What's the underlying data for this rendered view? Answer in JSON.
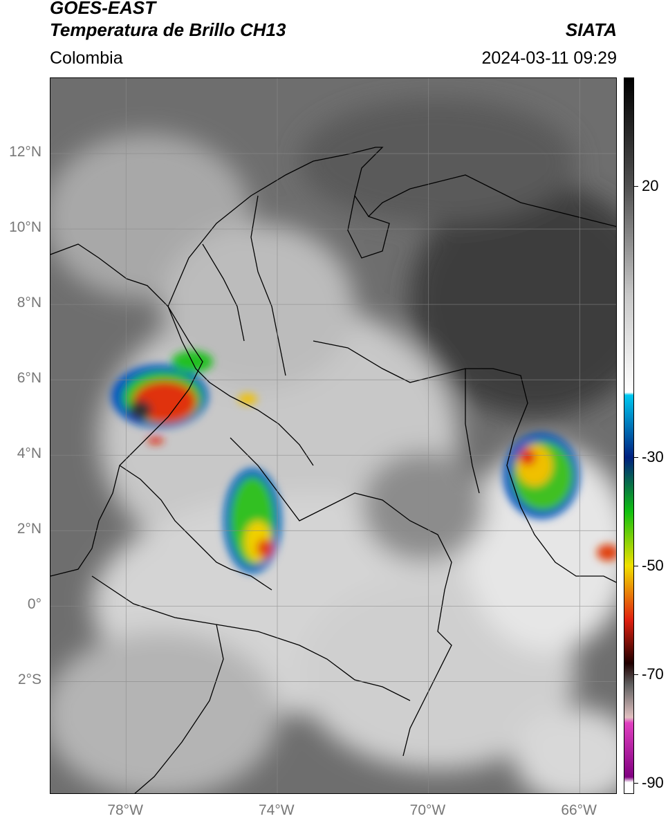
{
  "header": {
    "satellite": "GOES-EAST",
    "product": "Temperatura de Brillo CH13",
    "brand": "SIATA",
    "region": "Colombia",
    "timestamp": "2024-03-11 09:29"
  },
  "map": {
    "lon_range": [
      -80,
      -65
    ],
    "lat_range": [
      -5,
      14
    ],
    "lat_ticks": [
      {
        "lat": 12,
        "label": "12°N"
      },
      {
        "lat": 10,
        "label": "10°N"
      },
      {
        "lat": 8,
        "label": "8°N"
      },
      {
        "lat": 6,
        "label": "6°N"
      },
      {
        "lat": 4,
        "label": "4°N"
      },
      {
        "lat": 2,
        "label": "2°N"
      },
      {
        "lat": 0,
        "label": "0°"
      },
      {
        "lat": -2,
        "label": "2°S"
      }
    ],
    "lon_ticks": [
      {
        "lon": -78,
        "label": "78°W"
      },
      {
        "lon": -74,
        "label": "74°W"
      },
      {
        "lon": -70,
        "label": "70°W"
      },
      {
        "lon": -66,
        "label": "66°W"
      }
    ]
  },
  "colorbar": {
    "range": [
      -92,
      40
    ],
    "ticks": [
      {
        "value": 20,
        "label": "20"
      },
      {
        "value": -30,
        "label": "-30"
      },
      {
        "value": -50,
        "label": "-50"
      },
      {
        "value": -70,
        "label": "-70"
      },
      {
        "value": -90,
        "label": "-90"
      }
    ],
    "stops": [
      {
        "value": 40,
        "color": "#000000"
      },
      {
        "value": 20,
        "color": "#505050"
      },
      {
        "value": 0,
        "color": "#c8c8c8"
      },
      {
        "value": -18,
        "color": "#ffffff"
      },
      {
        "value": -18.5,
        "color": "#00c8f0"
      },
      {
        "value": -30,
        "color": "#002080"
      },
      {
        "value": -40,
        "color": "#10c010"
      },
      {
        "value": -50,
        "color": "#f0e000"
      },
      {
        "value": -60,
        "color": "#e02010"
      },
      {
        "value": -68,
        "color": "#200000"
      },
      {
        "value": -72,
        "color": "#606060"
      },
      {
        "value": -78,
        "color": "#e0c0c0"
      },
      {
        "value": -79,
        "color": "#e040c0"
      },
      {
        "value": -89,
        "color": "#800080"
      },
      {
        "value": -90,
        "color": "#ffffff"
      }
    ]
  }
}
